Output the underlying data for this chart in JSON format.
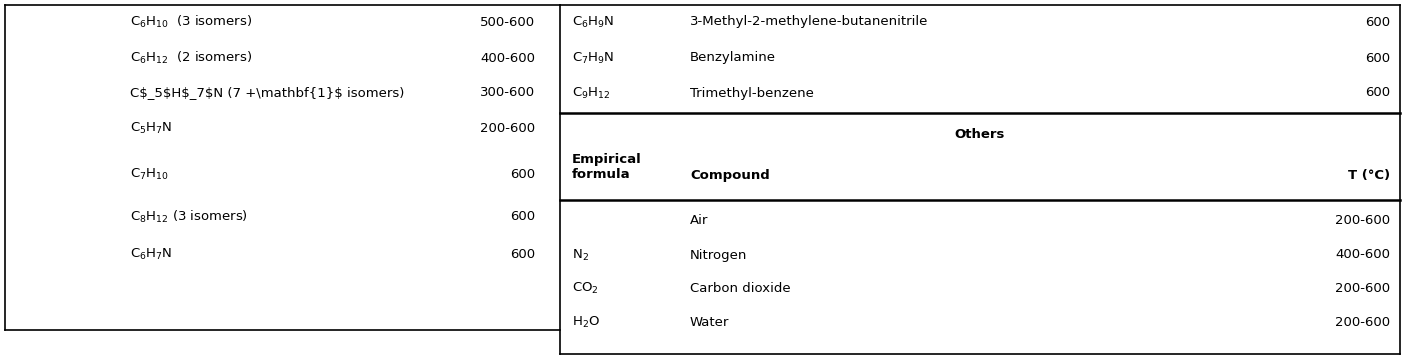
{
  "fig_width": 14.06,
  "fig_height": 3.6,
  "dpi": 100,
  "left_col": {
    "rows": [
      {
        "formula": "C$_6$H$_{10}$  (3 isomers)",
        "temp": "500-600"
      },
      {
        "formula": "C$_6$H$_{12}$  (2 isomers)",
        "temp": "400-600"
      },
      {
        "formula": "C$_5$H$_7$N (7 +\\mathbf{1}$ isomers)",
        "temp": "300-600"
      },
      {
        "formula": "C$_5$H$_7$N",
        "temp": "200-600"
      },
      {
        "formula": "C$_7$H$_{10}$",
        "temp": "600"
      },
      {
        "formula": "C$_8$H$_{12}$ (3 isomers)",
        "temp": "600"
      },
      {
        "formula": "C$_6$H$_7$N",
        "temp": "600"
      }
    ]
  },
  "right_top_col": {
    "rows": [
      {
        "formula": "C$_6$H$_9$N",
        "compound": "3-Methyl-2-methylene-butanenitrile",
        "temp": "600"
      },
      {
        "formula": "C$_7$H$_9$N",
        "compound": "Benzylamine",
        "temp": "600"
      },
      {
        "formula": "C$_9$H$_{12}$",
        "compound": "Trimethyl-benzene",
        "temp": "600"
      }
    ]
  },
  "right_bottom_col": {
    "header": "Others",
    "subheader_formula": "Empirical\nformula",
    "subheader_compound": "Compound",
    "subheader_temp": "T (°C)",
    "rows": [
      {
        "formula": "",
        "compound": "Air",
        "temp": "200-600"
      },
      {
        "formula": "N$_2$",
        "compound": "Nitrogen",
        "temp": "400-600"
      },
      {
        "formula": "CO$_2$",
        "compound": "Carbon dioxide",
        "temp": "200-600"
      },
      {
        "formula": "H$_2$O",
        "compound": "Water",
        "temp": "200-600"
      }
    ]
  },
  "bg_color": "#ffffff",
  "text_color": "#000000",
  "border_color": "#000000",
  "font_size": 9.5,
  "left_col_rows_formula_plain": [
    "C₆H₁₀  (3 isomers)",
    "C₆H₁₂  (2 isomers)",
    "C₅H₇N (7 +1 isomers)",
    "C₅H₇N",
    "C₇H₁₀",
    "C₈H₁₂ (3 isomers)",
    "C₆H₇N"
  ]
}
